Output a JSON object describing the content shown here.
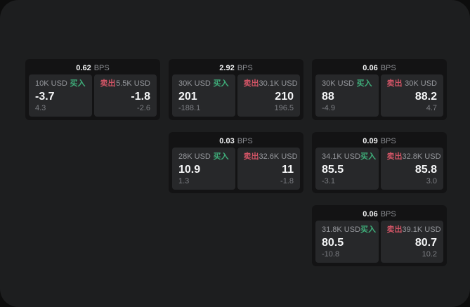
{
  "labels": {
    "buy": "买入",
    "sell": "卖出",
    "bps_unit": "BPS"
  },
  "colors": {
    "surface": "#1d1e1f",
    "card_background": "#131314",
    "panel_background": "#27282a",
    "buy_green": "#3fae7a",
    "sell_red": "#d05465",
    "value_white": "#f5f6f7",
    "label_gray": "#96989d",
    "sub_gray": "#7c7e83"
  },
  "cards": [
    {
      "bps": "0.62",
      "buy": {
        "amount": "10K USD",
        "price": "-3.7",
        "change": "4.3"
      },
      "sell": {
        "amount": "5.5K USD",
        "price": "-1.8",
        "change": "-2.6"
      }
    },
    {
      "bps": "2.92",
      "buy": {
        "amount": "30K USD",
        "price": "201",
        "change": "-188.1"
      },
      "sell": {
        "amount": "30.1K USD",
        "price": "210",
        "change": "196.5"
      }
    },
    {
      "bps": "0.06",
      "buy": {
        "amount": "30K USD",
        "price": "88",
        "change": "-4.9"
      },
      "sell": {
        "amount": "30K USD",
        "price": "88.2",
        "change": "4.7"
      }
    },
    {
      "bps": "0.03",
      "buy": {
        "amount": "28K USD",
        "price": "10.9",
        "change": "1.3"
      },
      "sell": {
        "amount": "32.6K USD",
        "price": "11",
        "change": "-1.8"
      }
    },
    {
      "bps": "0.09",
      "buy": {
        "amount": "34.1K USD",
        "price": "85.5",
        "change": "-3.1"
      },
      "sell": {
        "amount": "32.8K USD",
        "price": "85.8",
        "change": "3.0"
      }
    },
    {
      "bps": "0.06",
      "buy": {
        "amount": "31.8K USD",
        "price": "80.5",
        "change": "-10.8"
      },
      "sell": {
        "amount": "39.1K USD",
        "price": "80.7",
        "change": "10.2"
      }
    }
  ]
}
